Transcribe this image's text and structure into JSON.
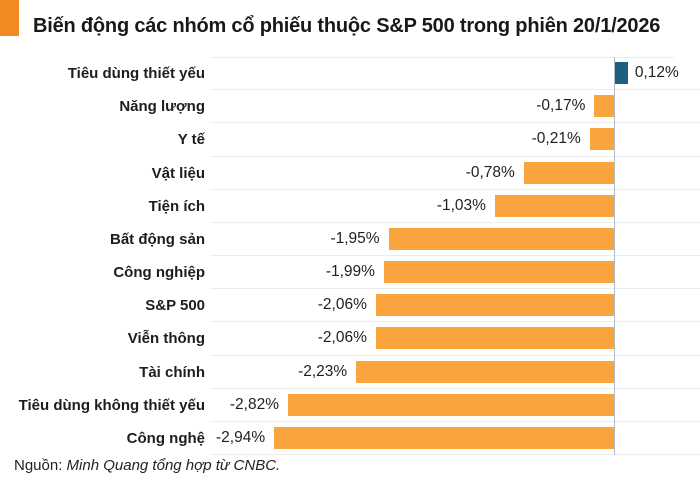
{
  "header": {
    "title": "Biến động các nhóm cổ phiếu thuộc S&P 500 trong phiên 20/1/2026",
    "accent_color": "#f18a21"
  },
  "chart_data": {
    "type": "bar",
    "orientation": "horizontal",
    "title": "Biến động các nhóm cổ phiếu thuộc S&P 500 trong phiên 20/1/2026",
    "xlabel": "",
    "ylabel": "",
    "xlim": [
      -3.49,
      0.52
    ],
    "grid": "row-separators",
    "legend_position": "none",
    "categories": [
      "Tiêu dùng thiết yếu",
      "Năng lượng",
      "Y tế",
      "Vật liệu",
      "Tiện ích",
      "Bất động sản",
      "Công nghiệp",
      "S&P 500",
      "Viễn thông",
      "Tài chính",
      "Tiêu dùng không thiết yếu",
      "Công nghệ"
    ],
    "values": [
      0.12,
      -0.17,
      -0.21,
      -0.78,
      -1.03,
      -1.95,
      -1.99,
      -2.06,
      -2.06,
      -2.23,
      -2.82,
      -2.94
    ],
    "value_labels": [
      "0,12%",
      "-0,17%",
      "-0,21%",
      "-0,78%",
      "-1,03%",
      "-1,95%",
      "-1,99%",
      "-2,06%",
      "-2,06%",
      "-2,23%",
      "-2,82%",
      "-2,94%"
    ],
    "positive_color": "#1d5f7e",
    "negative_color": "#f9a43c",
    "zero_line_color": "#b5bdc4",
    "gridline_color": "#ededed"
  },
  "footer": {
    "source_prefix": "Nguồn: ",
    "source_text": "Minh Quang tổng hợp từ CNBC."
  }
}
